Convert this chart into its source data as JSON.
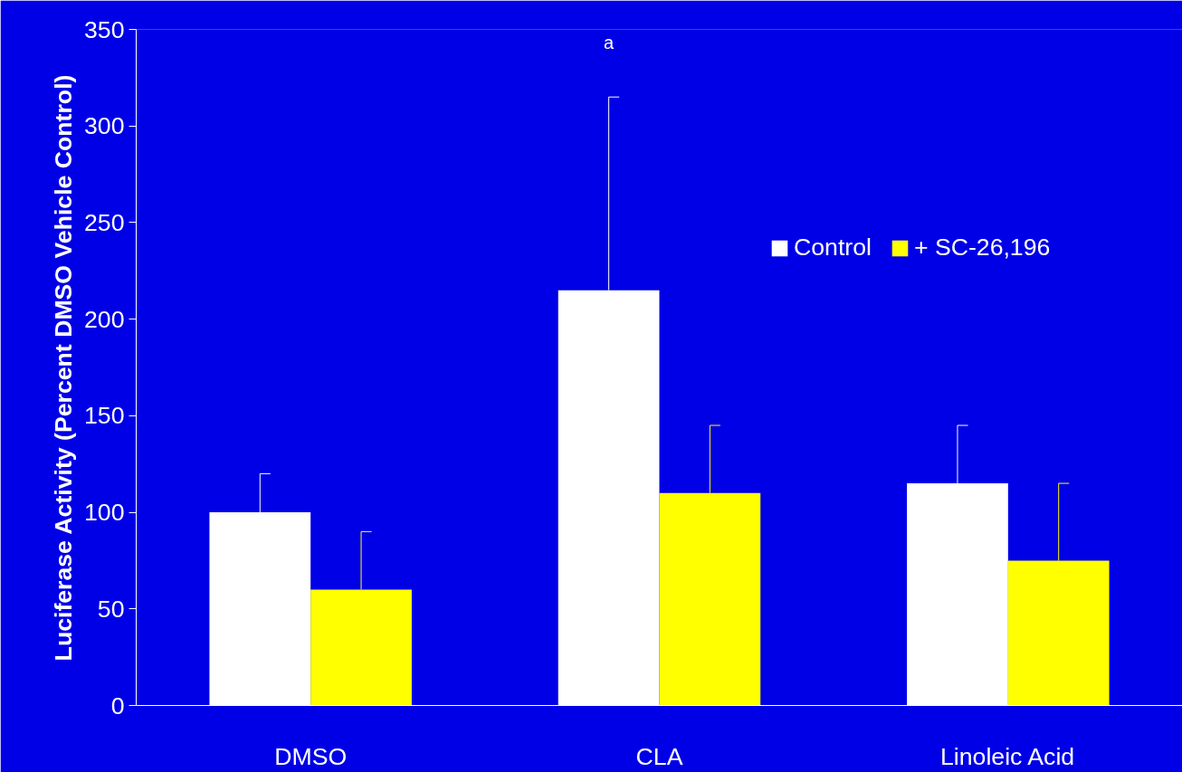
{
  "chart_data": {
    "type": "bar",
    "ylabel": "Luciferase Activity (Percent DMSO Vehicle Control)",
    "categories": [
      "DMSO",
      "CLA",
      "Linoleic Acid"
    ],
    "series": [
      {
        "name": "Control",
        "color": "#ffffff",
        "values": [
          100,
          215,
          115
        ],
        "errors": [
          [
            100,
            120
          ],
          [
            215,
            315
          ],
          [
            115,
            145
          ]
        ]
      },
      {
        "name": "+ SC-26,196",
        "color": "#ffff00",
        "values": [
          60,
          110,
          75
        ],
        "errors": [
          [
            60,
            90
          ],
          [
            110,
            145
          ],
          [
            75,
            115
          ]
        ]
      }
    ],
    "ylim": [
      0,
      350
    ],
    "yticks": [
      0,
      50,
      100,
      150,
      200,
      250,
      300,
      350
    ],
    "annotations": [
      "a"
    ],
    "grid": false,
    "legend": "top right"
  }
}
